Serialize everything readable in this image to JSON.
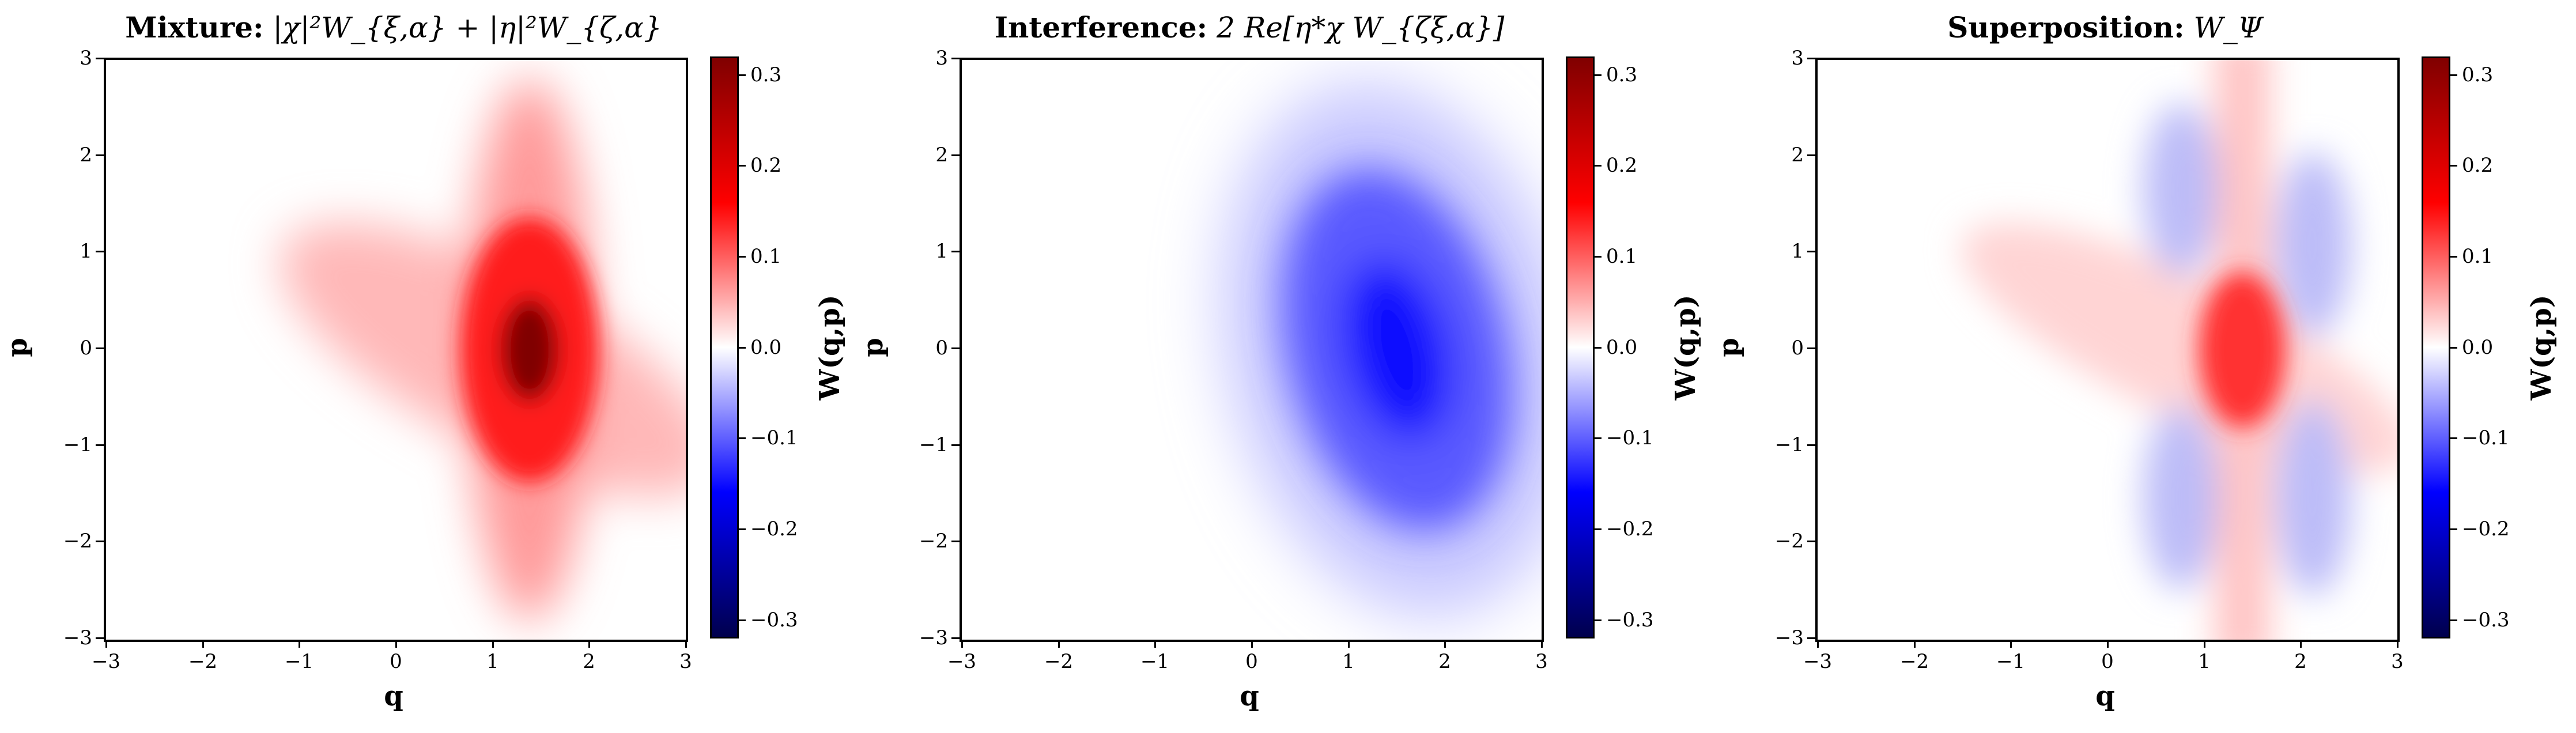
{
  "chart_data": [
    {
      "type": "heatmap",
      "title_bold": "Mixture:",
      "title_math": "|χ|²W_{ξ,α} + |η|²W_{ζ,α}",
      "xlabel": "q",
      "ylabel": "p",
      "xlim": [
        -3,
        3
      ],
      "ylim": [
        -3,
        3
      ],
      "xticks": [
        "−3",
        "−2",
        "−1",
        "0",
        "1",
        "2",
        "3"
      ],
      "yticks": [
        "−3",
        "−2",
        "−1",
        "0",
        "1",
        "2",
        "3"
      ],
      "colorbar_label": "W(q,p)",
      "colorbar_range": [
        -0.32,
        0.32
      ],
      "colorbar_ticks": [
        "−0.3",
        "−0.2",
        "−0.1",
        "0.0",
        "0.1",
        "0.2",
        "0.3"
      ],
      "colormap": [
        "#00004d",
        "#0000ff",
        "#ffffff",
        "#ff0000",
        "#800000"
      ],
      "peak": {
        "q": 1.4,
        "p": 0.0,
        "value": 0.31
      }
    },
    {
      "type": "heatmap",
      "title_bold": "Interference:",
      "title_math": "2 Re[η*χ W_{ζξ,α}]",
      "xlabel": "q",
      "ylabel": "p",
      "xlim": [
        -3,
        3
      ],
      "ylim": [
        -3,
        3
      ],
      "xticks": [
        "−3",
        "−2",
        "−1",
        "0",
        "1",
        "2",
        "3"
      ],
      "yticks": [
        "−3",
        "−2",
        "−1",
        "0",
        "1",
        "2",
        "3"
      ],
      "colorbar_label": "W(q,p)",
      "colorbar_range": [
        -0.32,
        0.32
      ],
      "colorbar_ticks": [
        "−0.3",
        "−0.2",
        "−0.1",
        "0.0",
        "0.1",
        "0.2",
        "0.3"
      ],
      "colormap": [
        "#00004d",
        "#0000ff",
        "#ffffff",
        "#ff0000",
        "#800000"
      ],
      "peak": {
        "q": 1.4,
        "p": 0.0,
        "value": -0.2
      }
    },
    {
      "type": "heatmap",
      "title_bold": "Superposition:",
      "title_math": "W_Ψ",
      "xlabel": "q",
      "ylabel": "p",
      "xlim": [
        -3,
        3
      ],
      "ylim": [
        -3,
        3
      ],
      "xticks": [
        "−3",
        "−2",
        "−1",
        "0",
        "1",
        "2",
        "3"
      ],
      "yticks": [
        "−3",
        "−2",
        "−1",
        "0",
        "1",
        "2",
        "3"
      ],
      "colorbar_label": "W(q,p)",
      "colorbar_range": [
        -0.32,
        0.32
      ],
      "colorbar_ticks": [
        "−0.3",
        "−0.2",
        "−0.1",
        "0.0",
        "0.1",
        "0.2",
        "0.3"
      ],
      "colormap": [
        "#00004d",
        "#0000ff",
        "#ffffff",
        "#ff0000",
        "#800000"
      ],
      "peak": {
        "q": 1.4,
        "p": 0.0,
        "value": 0.16
      }
    }
  ]
}
